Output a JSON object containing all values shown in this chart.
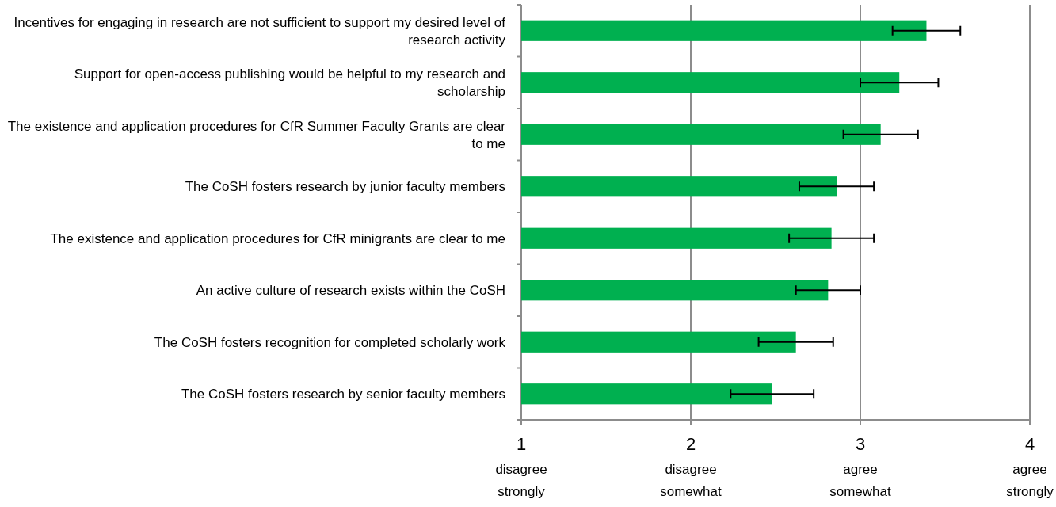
{
  "chart_data": {
    "type": "bar",
    "orientation": "horizontal",
    "categories": [
      "Incentives for engaging in research are not sufficient to support my desired level of research activity",
      "Support for open-access publishing would be helpful to my research and scholarship",
      "The existence and application procedures for CfR Summer Faculty Grants are clear to me",
      "The CoSH fosters research by junior faculty members",
      "The existence and application procedures for CfR minigrants are clear to me",
      "An active culture of research exists within the CoSH",
      "The CoSH fosters recognition for completed scholarly work",
      "The CoSH fosters research by senior faculty members"
    ],
    "values": [
      3.39,
      3.23,
      3.12,
      2.86,
      2.83,
      2.81,
      2.62,
      2.48
    ],
    "errors": [
      0.2,
      0.23,
      0.22,
      0.22,
      0.25,
      0.19,
      0.22,
      0.245
    ],
    "color": "#00b050",
    "xlim": [
      1,
      4
    ],
    "xticks": [
      {
        "value": 1,
        "label": "1\ndisagree\nstrongly"
      },
      {
        "value": 2,
        "label": "2\ndisagree\nsomewhat"
      },
      {
        "value": 3,
        "label": "3\nagree\nsomewhat"
      },
      {
        "value": 4,
        "label": "4\nagree\nstrongly"
      }
    ],
    "grid": "x"
  }
}
